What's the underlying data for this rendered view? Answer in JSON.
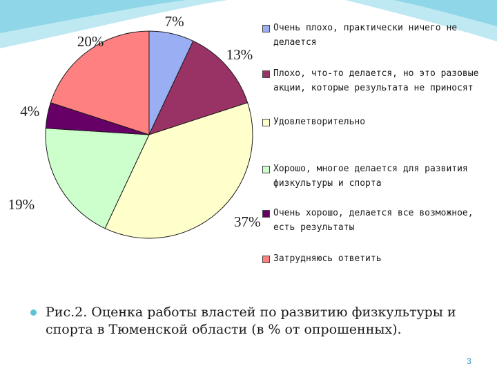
{
  "chart_data": {
    "type": "pie",
    "slices": [
      {
        "label": "Очень плохо, практически ничего не делается",
        "value": 7,
        "color": "#9AAEF4"
      },
      {
        "label": "Плохо, что-то делается, но это разовые акции, которые результата не приносят",
        "value": 13,
        "color": "#993366"
      },
      {
        "label": "Удовлетворительно",
        "value": 37,
        "color": "#FFFFCC"
      },
      {
        "label": "Хорошо, многое делается для развития физкультуры и спорта",
        "value": 19,
        "color": "#CCFFCC"
      },
      {
        "label": "Очень хорошо, делается все возможное, есть результаты",
        "value": 4,
        "color": "#660066"
      },
      {
        "label": "Затрудняюсь ответить",
        "value": 20,
        "color": "#FF8080"
      }
    ],
    "data_labels": [
      "7%",
      "13%",
      "37%",
      "19%",
      "4%",
      "20%"
    ],
    "legend_position": "right"
  },
  "caption": "Рис.2. Оценка работы властей по развитию физкультуры и спорта в Тюменской области (в % от опрошенных).",
  "page_number": "3",
  "theme": {
    "accent": "#5fc3d8",
    "page_number_color": "#2f8fc9"
  }
}
